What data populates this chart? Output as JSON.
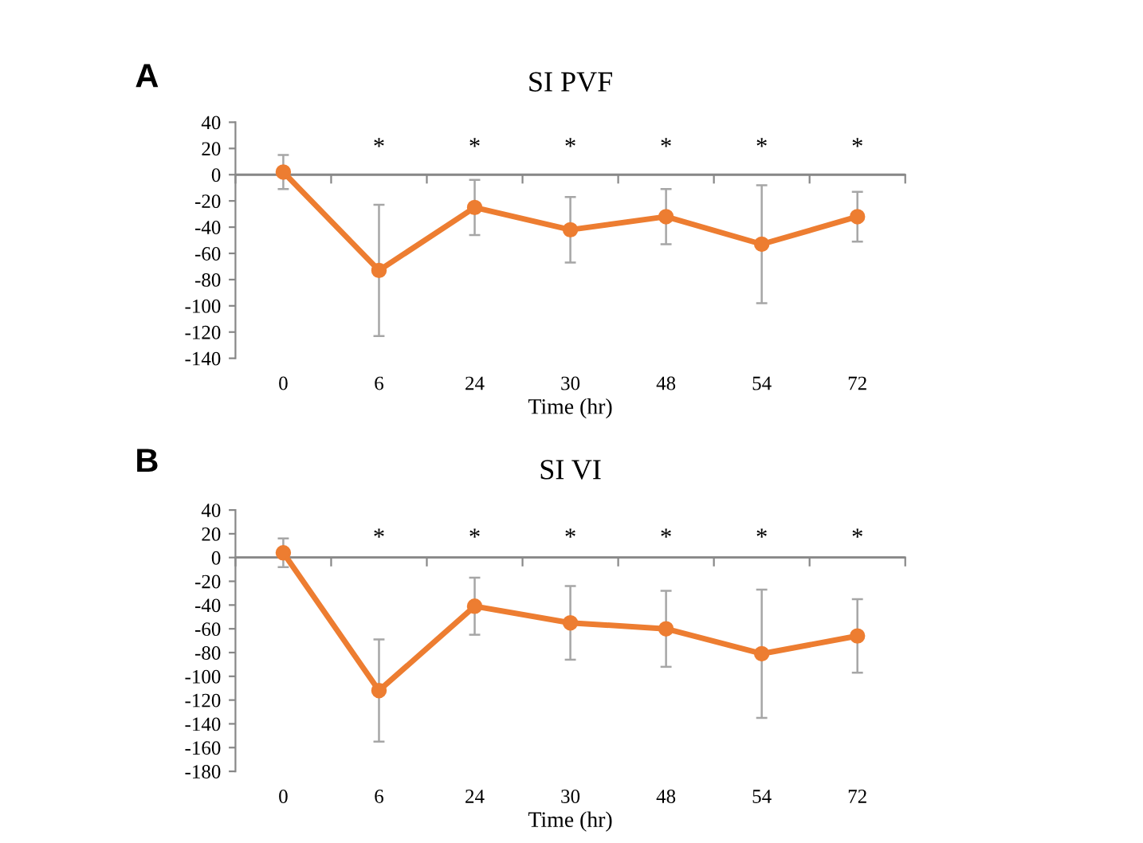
{
  "chart_data": [
    {
      "type": "line",
      "title": "SI PVF",
      "xlabel": "Time (hr)",
      "categories": [
        "0",
        "6",
        "24",
        "30",
        "48",
        "54",
        "72"
      ],
      "series": [
        {
          "color": "#ed7d31",
          "values": [
            2,
            -73,
            -25,
            -42,
            -32,
            -53,
            -32
          ],
          "errors": [
            13,
            50,
            21,
            25,
            21,
            45,
            19
          ]
        }
      ],
      "ylim": [
        -140,
        40
      ],
      "yticks": [
        -140,
        -120,
        -100,
        -80,
        -60,
        -40,
        -20,
        0,
        20,
        40
      ],
      "grid": false,
      "legend": false,
      "marker": "circle",
      "line_style": "solid",
      "ref_lines": [
        {
          "axis": "y",
          "value": 0,
          "color": "#888888"
        }
      ],
      "annotations": [
        "A",
        "*",
        "*",
        "*",
        "*",
        "*",
        "*"
      ]
    },
    {
      "type": "line",
      "title": "SI VI",
      "xlabel": "Time (hr)",
      "categories": [
        "0",
        "6",
        "24",
        "30",
        "48",
        "54",
        "72"
      ],
      "series": [
        {
          "color": "#ed7d31",
          "values": [
            4,
            -112,
            -41,
            -55,
            -60,
            -81,
            -66
          ],
          "errors": [
            12,
            43,
            24,
            31,
            32,
            54,
            31
          ]
        }
      ],
      "ylim": [
        -180,
        40
      ],
      "yticks": [
        -180,
        -160,
        -140,
        -120,
        -100,
        -80,
        -60,
        -40,
        -20,
        0,
        20,
        40
      ],
      "grid": false,
      "legend": false,
      "marker": "circle",
      "line_style": "solid",
      "ref_lines": [
        {
          "axis": "y",
          "value": 0,
          "color": "#888888"
        }
      ],
      "annotations": [
        "B",
        "*",
        "*",
        "*",
        "*",
        "*",
        "*"
      ]
    }
  ]
}
